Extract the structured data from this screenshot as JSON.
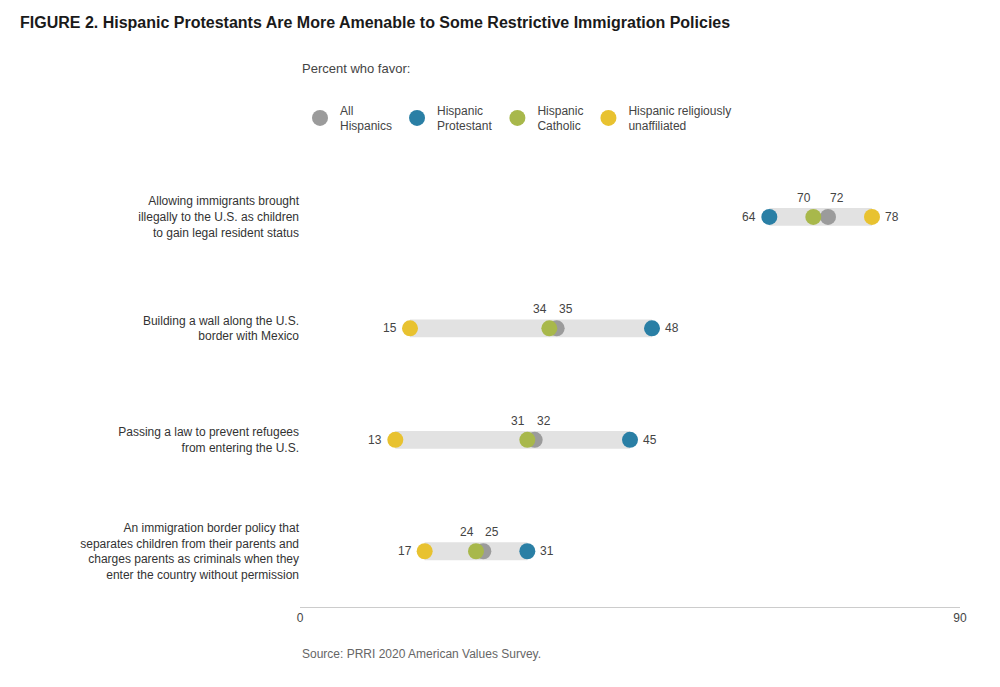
{
  "chart_data": {
    "type": "dot",
    "orientation": "horizontal",
    "title": "FIGURE 2. Hispanic Protestants Are More Amenable to Some Restrictive Immigration Policies",
    "subtitle": "Percent who favor:",
    "source": "Source: PRRI 2020 American Values Survey.",
    "categories": [
      "Allowing immigrants brought\nillegally to the U.S. as children\nto gain legal resident status",
      "Building a wall along the U.S.\nborder with Mexico",
      "Passing a law to prevent refugees\nfrom entering the U.S.",
      "An immigration border policy that\nseparates children from their parents and\ncharges parents as criminals when they\nenter the country without permission"
    ],
    "series": [
      {
        "name": "All\nHispanics",
        "color": "#9b9b9b",
        "values": [
          72,
          35,
          32,
          25
        ]
      },
      {
        "name": "Hispanic\nProtestant",
        "color": "#2a7fa5",
        "values": [
          64,
          48,
          45,
          31
        ]
      },
      {
        "name": "Hispanic\nCatholic",
        "color": "#a8b84b",
        "values": [
          70,
          34,
          31,
          24
        ]
      },
      {
        "name": "Hispanic religiously\nunaffiliated",
        "color": "#e8c230",
        "values": [
          78,
          15,
          13,
          17
        ]
      }
    ],
    "color": "#e2e2e2",
    "xlim": [
      0,
      90
    ],
    "xticks": [
      0,
      90
    ],
    "grid": false,
    "legend": "top",
    "data_labels": true
  }
}
